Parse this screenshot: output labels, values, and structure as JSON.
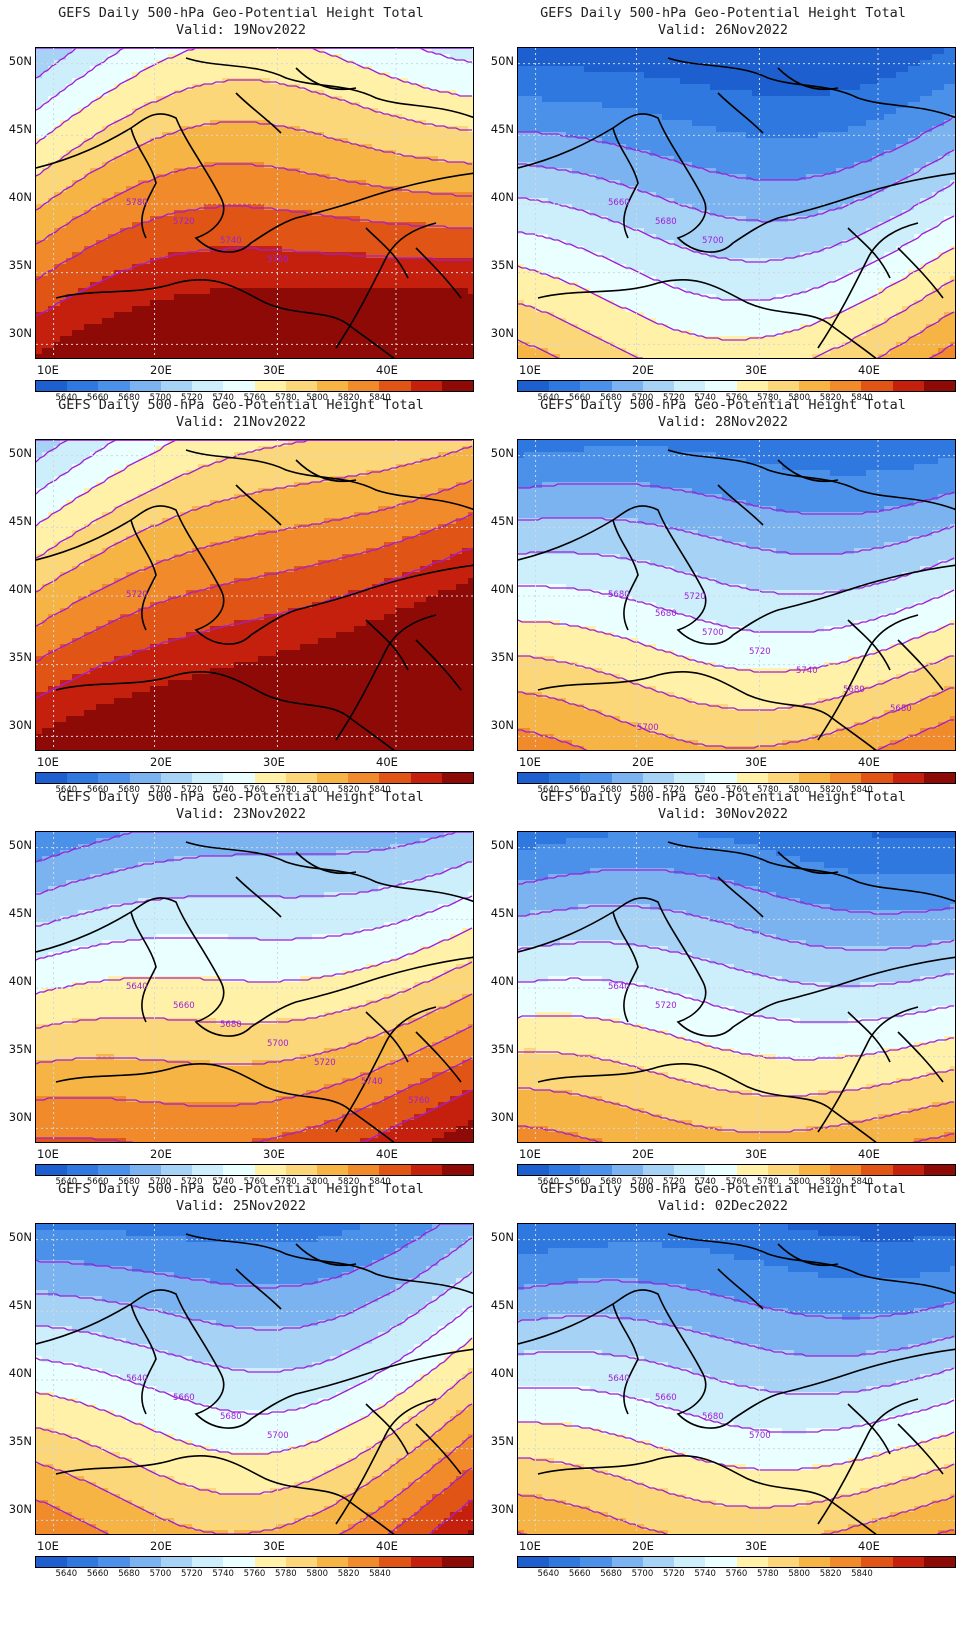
{
  "title_line1": "GEFS Daily 500-hPa Geo-Potential Height Total",
  "y_ticks": [
    "50N",
    "45N",
    "40N",
    "35N",
    "30N"
  ],
  "x_ticks": [
    "10E",
    "20E",
    "30E",
    "40E"
  ],
  "colorbar": {
    "labels": [
      "5640",
      "5660",
      "5680",
      "5700",
      "5720",
      "5740",
      "5760",
      "5780",
      "5800",
      "5820",
      "5840"
    ],
    "colors": [
      "#1e5fd0",
      "#2e78e0",
      "#4b91ea",
      "#7ab3f0",
      "#a6d2f6",
      "#cdeefb",
      "#eaffff",
      "#fff2a8",
      "#fbd77a",
      "#f6b444",
      "#f08a2a",
      "#e05515",
      "#c5200e",
      "#8e0a06"
    ]
  },
  "panels": [
    {
      "valid_label": "Valid: 19Nov2022",
      "contour_labels": [
        "5780",
        "5720",
        "5740",
        "5760"
      ],
      "shift": 0.9,
      "tilt": 0.35,
      "bulge": 0.55
    },
    {
      "valid_label": "Valid: 26Nov2022",
      "contour_labels": [
        "5660",
        "5680",
        "5700"
      ],
      "shift": -0.4,
      "tilt": 0.2,
      "bulge": -0.45
    },
    {
      "valid_label": "Valid: 21Nov2022",
      "contour_labels": [
        "5720"
      ],
      "shift": 1.3,
      "tilt": 0.85,
      "bulge": 0.15
    },
    {
      "valid_label": "Valid: 28Nov2022",
      "contour_labels": [
        "5680",
        "5680",
        "5700",
        "5720",
        "5740",
        "5680",
        "5680",
        "5700",
        "5720"
      ],
      "shift": -0.1,
      "tilt": 0.1,
      "bulge": -0.2
    },
    {
      "valid_label": "Valid: 23Nov2022",
      "contour_labels": [
        "5640",
        "5660",
        "5680",
        "5700",
        "5720",
        "5740",
        "5760"
      ],
      "shift": 0.3,
      "tilt": 0.45,
      "bulge": -0.1
    },
    {
      "valid_label": "Valid: 30Nov2022",
      "contour_labels": [
        "5640",
        "5720"
      ],
      "shift": -0.2,
      "tilt": 0.0,
      "bulge": 0.0
    },
    {
      "valid_label": "Valid: 25Nov2022",
      "contour_labels": [
        "5640",
        "5660",
        "5680",
        "5700"
      ],
      "shift": 0.2,
      "tilt": 0.4,
      "bulge": -0.6
    },
    {
      "valid_label": "Valid: 02Dec2022",
      "contour_labels": [
        "5640",
        "5660",
        "5680",
        "5700"
      ],
      "shift": -0.3,
      "tilt": 0.05,
      "bulge": -0.1
    }
  ]
}
